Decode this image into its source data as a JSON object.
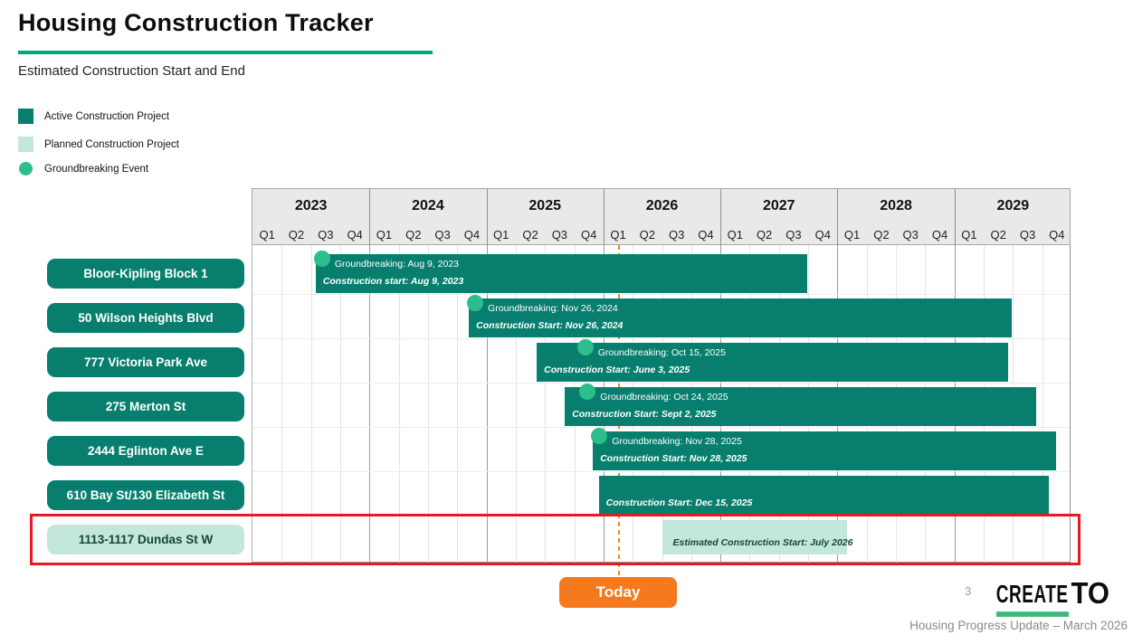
{
  "page": {
    "title": "Housing Construction Tracker",
    "subtitle": "Estimated Construction Start and End",
    "page_number": "3",
    "footer_text": "Housing Progress Update – March 2026",
    "today_button_label": "Today",
    "logo": {
      "create": "CREATE",
      "to": "TO"
    }
  },
  "legend": {
    "items": [
      {
        "label": "Active Construction Project",
        "swatch": "active-square"
      },
      {
        "label": "Planned Construction Project",
        "swatch": "planned-square"
      },
      {
        "label": "Groundbreaking Event",
        "swatch": "groundbreaking-circle"
      }
    ]
  },
  "colors": {
    "active": "#087F6E",
    "planned": "#C3E7DA",
    "groundbreaking": "#2EBD8C",
    "today_orange": "#F5791D",
    "highlight_red": "#E8191F",
    "title_underline_green": "#00A77C",
    "logo_underline_green": "#3CB878"
  },
  "chart_data": {
    "type": "gantt",
    "title": "Estimated Construction Start and End",
    "axis_years": [
      2023,
      2024,
      2025,
      2026,
      2027,
      2028,
      2029
    ],
    "quarter_labels": [
      "Q1",
      "Q2",
      "Q3",
      "Q4"
    ],
    "axis_range": [
      2023,
      2030
    ],
    "today_line_position": 2026.13,
    "projects": [
      {
        "name": "Bloor-Kipling Block 1",
        "status": "active",
        "start": 2023.54,
        "end": 2027.74,
        "groundbreaking_pos": 2023.54,
        "groundbreaking_label": "Groundbreaking: Aug 9, 2023",
        "construction_label": "Construction start: Aug 9, 2023",
        "highlighted": false
      },
      {
        "name": "50 Wilson Heights Blvd",
        "status": "active",
        "start": 2024.85,
        "end": 2029.49,
        "groundbreaking_pos": 2024.85,
        "groundbreaking_label": "Groundbreaking: Nov 26, 2024",
        "construction_label": "Construction Start: Nov 26, 2024",
        "highlighted": false
      },
      {
        "name": "777 Victoria Park Ave",
        "status": "active",
        "start": 2025.43,
        "end": 2029.46,
        "groundbreaking_pos": 2025.79,
        "groundbreaking_label": "Groundbreaking: Oct 15, 2025",
        "construction_label": "Construction Start: June 3, 2025",
        "highlighted": false
      },
      {
        "name": "275 Merton St",
        "status": "active",
        "start": 2025.67,
        "end": 2029.7,
        "groundbreaking_pos": 2025.81,
        "groundbreaking_label": "Groundbreaking: Oct 24, 2025",
        "construction_label": "Construction Start: Sept 2, 2025",
        "highlighted": false
      },
      {
        "name": "2444 Eglinton Ave E",
        "status": "active",
        "start": 2025.91,
        "end": 2029.87,
        "groundbreaking_pos": 2025.91,
        "groundbreaking_label": "Groundbreaking: Nov 28, 2025",
        "construction_label": "Construction Start: Nov 28, 2025",
        "highlighted": false
      },
      {
        "name": "610 Bay St/130 Elizabeth St",
        "status": "active",
        "start": 2025.96,
        "end": 2029.81,
        "groundbreaking_pos": null,
        "groundbreaking_label": null,
        "construction_label": "Construction Start: Dec 15, 2025",
        "highlighted": false
      },
      {
        "name": "1113-1117 Dundas St W",
        "status": "planned",
        "start": 2026.5,
        "end": 2028.08,
        "groundbreaking_pos": null,
        "groundbreaking_label": null,
        "construction_label": "Estimated Construction Start: July 2026",
        "highlighted": true
      }
    ]
  }
}
